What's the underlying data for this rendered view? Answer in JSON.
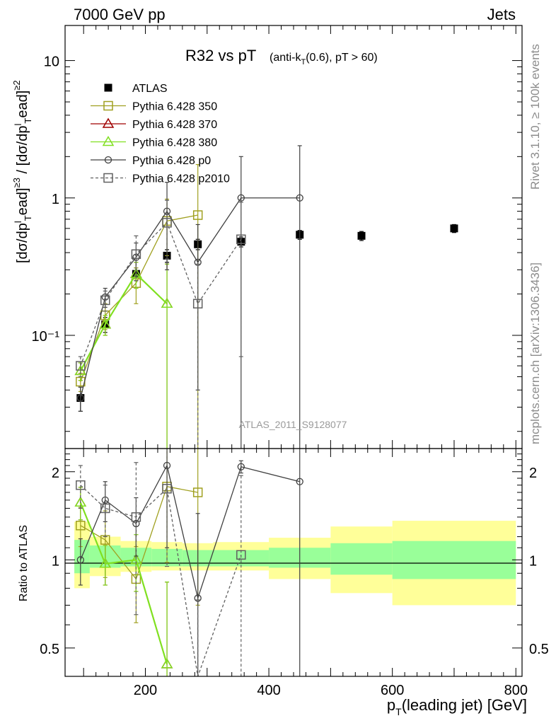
{
  "header": {
    "left": "7000 GeV pp",
    "right": "Jets"
  },
  "side_labels": {
    "rivet": "Rivet 3.1.10, ≥ 100k events",
    "mcplots": "mcplots.cern.ch [arXiv:1306.3436]"
  },
  "chart_data": [
    {
      "type": "scatter",
      "title": "R32 vs pT",
      "title_detail": "(anti-kT(0.6), pT > 60)",
      "ylabel": "[dσ/dpᵀead³ / [dσ/dpᵀead²",
      "ylabel_main": "[dσ/dp",
      "ylabel_parts": [
        "[dσ/dp",
        "T",
        "ead",
        "≥3",
        " / [dσ/dp",
        "T",
        "ead",
        "≥2"
      ],
      "yscale": "log",
      "ylim": [
        0.015,
        18
      ],
      "xlim": [
        70,
        810
      ],
      "grid": false,
      "legend_position": "top-left",
      "watermark": "ATLAS_2011_S9128077",
      "y_tick_labels": [
        "10⁻¹",
        "1",
        "10"
      ],
      "series": [
        {
          "name": "ATLAS",
          "color": "#000000",
          "marker": "filled-square",
          "line": "none",
          "x": [
            95,
            135,
            185,
            235,
            285,
            355,
            450,
            550,
            700
          ],
          "y": [
            0.035,
            0.12,
            0.28,
            0.38,
            0.46,
            0.48,
            0.54,
            0.53,
            0.6
          ],
          "yerr": [
            0.007,
            0.015,
            0.03,
            0.04,
            0.04,
            0.04,
            0.04,
            0.04,
            0.04
          ]
        },
        {
          "name": "Pythia 6.428 350",
          "color": "#a0a020",
          "marker": "open-square",
          "line": "solid",
          "x": [
            95,
            135,
            185,
            235,
            285
          ],
          "y": [
            0.046,
            0.14,
            0.24,
            0.68,
            0.75
          ],
          "yerr": [
            0.007,
            0.03,
            0.07,
            0.3,
            1.0
          ]
        },
        {
          "name": "Pythia 6.428 370",
          "color": "#a00000",
          "marker": "open-triangle",
          "line": "solid",
          "x": [
            95,
            135,
            185,
            235
          ],
          "y": [
            0.055,
            0.12,
            0.28,
            0.17
          ],
          "yerr": [
            0.008,
            0.02,
            0.06,
            0.16
          ]
        },
        {
          "name": "Pythia 6.428 380",
          "color": "#80e020",
          "marker": "open-triangle",
          "line": "solid",
          "x": [
            95,
            135,
            185,
            235
          ],
          "y": [
            0.055,
            0.12,
            0.28,
            0.17
          ],
          "yerr": [
            0.008,
            0.02,
            0.06,
            0.16
          ]
        },
        {
          "name": "Pythia 6.428 p0",
          "color": "#404040",
          "marker": "open-circle",
          "line": "solid",
          "x": [
            95,
            135,
            185,
            235,
            285,
            355,
            450
          ],
          "y": [
            0.035,
            0.19,
            0.37,
            0.8,
            0.34,
            1.0,
            1.0
          ],
          "yerr": [
            0.007,
            0.03,
            0.1,
            0.5,
            0.3,
            1.0,
            1.4
          ]
        },
        {
          "name": "Pythia 6.428 p2010",
          "color": "#606060",
          "marker": "open-square",
          "line": "dashed",
          "x": [
            95,
            135,
            185,
            235,
            285,
            355
          ],
          "y": [
            0.06,
            0.18,
            0.39,
            0.66,
            0.17,
            0.5
          ],
          "yerr": [
            0.01,
            0.03,
            0.14,
            0.3,
            0.16,
            0.43
          ]
        }
      ]
    },
    {
      "type": "scatter",
      "ylabel": "Ratio to ATLAS",
      "xlabel": "pT(leading jet) [GeV]",
      "xlabel_parts": [
        "p",
        "T",
        "(leading jet) [GeV]"
      ],
      "yscale": "log",
      "ylim": [
        0.4,
        2.4
      ],
      "xlim": [
        70,
        810
      ],
      "x_ticks": [
        200,
        400,
        600,
        800
      ],
      "y_ticks": [
        0.5,
        1,
        2
      ],
      "reference_line": 1,
      "bands": {
        "bins": [
          [
            85,
            110
          ],
          [
            110,
            160
          ],
          [
            160,
            210
          ],
          [
            210,
            260
          ],
          [
            260,
            310
          ],
          [
            310,
            400
          ],
          [
            400,
            500
          ],
          [
            500,
            600
          ],
          [
            600,
            800
          ]
        ],
        "inner": [
          [
            0.9,
            1.17
          ],
          [
            0.94,
            1.12
          ],
          [
            0.95,
            1.1
          ],
          [
            0.95,
            1.09
          ],
          [
            0.95,
            1.08
          ],
          [
            0.95,
            1.08
          ],
          [
            0.94,
            1.1
          ],
          [
            0.89,
            1.14
          ],
          [
            0.86,
            1.16
          ]
        ],
        "outer": [
          [
            0.8,
            1.35
          ],
          [
            0.88,
            1.2
          ],
          [
            0.91,
            1.16
          ],
          [
            0.92,
            1.15
          ],
          [
            0.92,
            1.14
          ],
          [
            0.92,
            1.15
          ],
          [
            0.86,
            1.19
          ],
          [
            0.77,
            1.3
          ],
          [
            0.7,
            1.36
          ]
        ],
        "inner_color": "#99ff99",
        "outer_color": "#ffff99"
      },
      "series": [
        {
          "name": "Pythia 6.428 350",
          "color": "#a0a020",
          "marker": "open-square",
          "line": "solid",
          "x": [
            95,
            135,
            185,
            235,
            285
          ],
          "y": [
            1.31,
            1.17,
            0.86,
            1.78,
            1.7
          ],
          "yerr": [
            0.2,
            0.3,
            0.25,
            0.8,
            1.0
          ]
        },
        {
          "name": "Pythia 6.428 370",
          "color": "#a00000",
          "marker": "open-triangle",
          "line": "solid",
          "x": [
            95,
            135,
            185,
            235
          ],
          "y": [
            1.57,
            0.97,
            1.0,
            0.44
          ],
          "yerr": [
            0.2,
            0.15,
            0.22,
            0.4
          ]
        },
        {
          "name": "Pythia 6.428 380",
          "color": "#80e020",
          "marker": "open-triangle",
          "line": "solid",
          "x": [
            95,
            135,
            185,
            235
          ],
          "y": [
            1.57,
            0.97,
            1.0,
            0.44
          ],
          "yerr": [
            0.2,
            0.15,
            0.22,
            0.4
          ]
        },
        {
          "name": "Pythia 6.428 p0",
          "color": "#404040",
          "marker": "open-circle",
          "line": "solid",
          "x": [
            95,
            135,
            185,
            235,
            285,
            355,
            450
          ],
          "y": [
            1.0,
            1.6,
            1.33,
            2.1,
            0.74,
            2.08,
            1.85
          ],
          "yerr": [
            0.18,
            0.25,
            0.3,
            1.0,
            0.7,
            0.1,
            2.0
          ]
        },
        {
          "name": "Pythia 6.428 p2010",
          "color": "#606060",
          "marker": "open-square",
          "line": "dashed",
          "x": [
            95,
            135,
            185,
            235,
            285,
            355
          ],
          "y": [
            1.8,
            1.5,
            1.4,
            1.75,
            0.37,
            1.04
          ],
          "yerr": [
            0.3,
            0.3,
            0.75,
            0.8,
            0.36,
            0.9
          ]
        }
      ]
    }
  ]
}
